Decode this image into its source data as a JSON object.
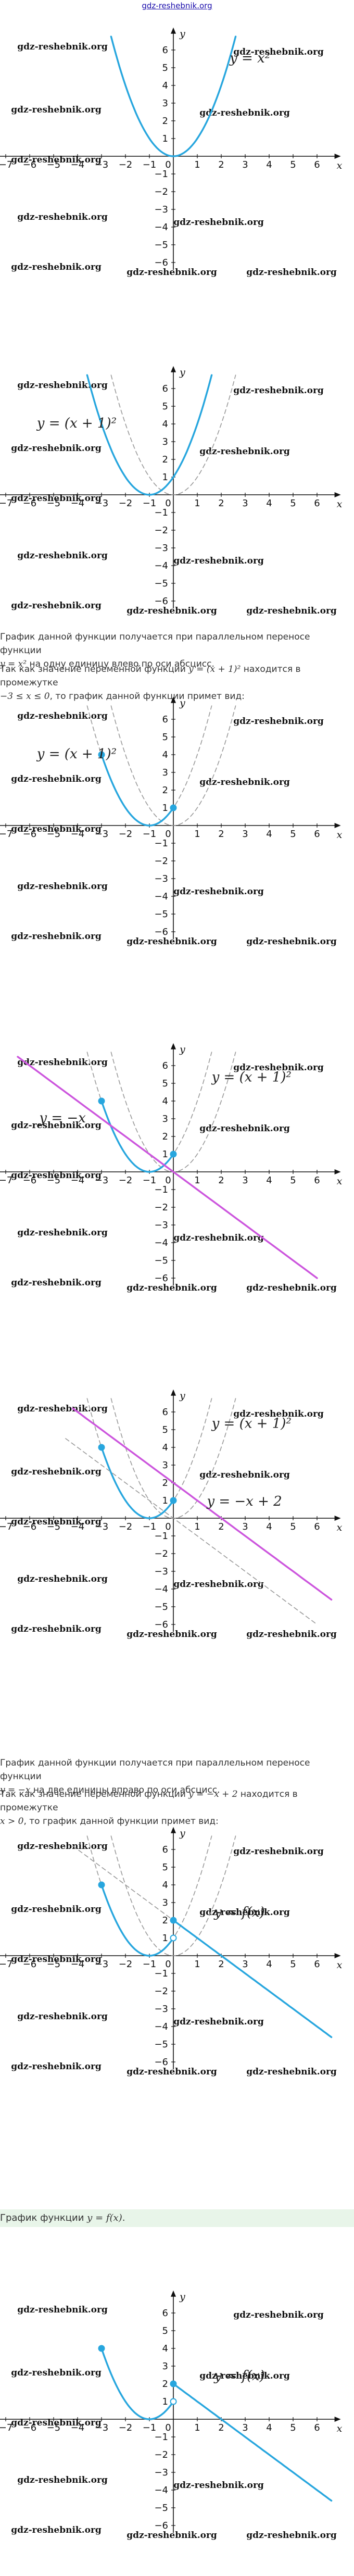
{
  "site": "gdz-reshebnik.org",
  "watermark": "gdz-reshebnik.org",
  "graphs": [
    {
      "chart_data": {
        "type": "line",
        "xlim": [
          -7,
          6.6
        ],
        "ylim": [
          -6.3,
          6.8
        ],
        "x_ticks": [
          -7,
          -6,
          -5,
          -4,
          -3,
          -2,
          -1,
          1,
          2,
          3,
          4,
          5,
          6
        ],
        "y_ticks": [
          6,
          5,
          4,
          3,
          2,
          1,
          -1,
          -2,
          -3,
          -4,
          -5,
          -6
        ],
        "xlabel": "x",
        "ylabel": "y",
        "series": [
          {
            "kind": "parabola",
            "h": 0,
            "x_from": -2.6,
            "x_to": 2.6,
            "style": "solid",
            "color": "#27a6de"
          }
        ],
        "labels": [
          {
            "text": "y = x²",
            "x": 2.35,
            "y": 5.3
          }
        ],
        "points": []
      }
    },
    {
      "chart_data": {
        "type": "line",
        "xlim": [
          -7,
          6.6
        ],
        "ylim": [
          -6.3,
          6.8
        ],
        "x_ticks": [
          -7,
          -6,
          -5,
          -4,
          -3,
          -2,
          -1,
          1,
          2,
          3,
          4,
          5,
          6
        ],
        "y_ticks": [
          6,
          5,
          4,
          3,
          2,
          1,
          -1,
          -2,
          -3,
          -4,
          -5,
          -6
        ],
        "xlabel": "x",
        "ylabel": "y",
        "series": [
          {
            "kind": "parabola",
            "h": 0,
            "x_from": -2.6,
            "x_to": 2.6,
            "style": "dashed",
            "color": "#999999"
          },
          {
            "kind": "parabola",
            "h": -1,
            "x_from": -3.6,
            "x_to": 1.6,
            "style": "solid",
            "color": "#27a6de"
          }
        ],
        "labels": [
          {
            "text": "y = (x + 1)²",
            "x": -5.7,
            "y": 3.8
          }
        ],
        "points": []
      }
    },
    {
      "chart_data": {
        "type": "line",
        "xlim": [
          -7,
          6.6
        ],
        "ylim": [
          -6.3,
          6.8
        ],
        "x_ticks": [
          -7,
          -6,
          -5,
          -4,
          -3,
          -2,
          -1,
          1,
          2,
          3,
          4,
          5,
          6
        ],
        "y_ticks": [
          6,
          5,
          4,
          3,
          2,
          1,
          -1,
          -2,
          -3,
          -4,
          -5,
          -6
        ],
        "xlabel": "x",
        "ylabel": "y",
        "series": [
          {
            "kind": "parabola",
            "h": 0,
            "x_from": -2.6,
            "x_to": 2.6,
            "style": "dashed",
            "color": "#999999"
          },
          {
            "kind": "parabola",
            "h": -1,
            "x_from": -3.6,
            "x_to": 1.6,
            "style": "dashed",
            "color": "#999999"
          },
          {
            "kind": "parabola",
            "h": -1,
            "x_from": -3,
            "x_to": 0,
            "style": "solid",
            "color": "#27a6de"
          }
        ],
        "labels": [
          {
            "text": "y = (x + 1)²",
            "x": -5.7,
            "y": 3.8
          }
        ],
        "points": [
          {
            "x": -3,
            "y": 4,
            "fill": "#27a6de"
          },
          {
            "x": 0,
            "y": 1,
            "fill": "#27a6de"
          }
        ]
      }
    },
    {
      "chart_data": {
        "type": "line",
        "xlim": [
          -7,
          6.6
        ],
        "ylim": [
          -6.3,
          6.8
        ],
        "x_ticks": [
          -7,
          -6,
          -5,
          -4,
          -3,
          -2,
          -1,
          1,
          2,
          3,
          4,
          5,
          6
        ],
        "y_ticks": [
          6,
          5,
          4,
          3,
          2,
          1,
          -1,
          -2,
          -3,
          -4,
          -5,
          -6
        ],
        "xlabel": "x",
        "ylabel": "y",
        "series": [
          {
            "kind": "parabola",
            "h": 0,
            "x_from": -2.6,
            "x_to": 2.6,
            "style": "dashed",
            "color": "#999999"
          },
          {
            "kind": "parabola",
            "h": -1,
            "x_from": -3.6,
            "x_to": 1.6,
            "style": "dashed",
            "color": "#999999"
          },
          {
            "kind": "parabola",
            "h": -1,
            "x_from": -3,
            "x_to": 0,
            "style": "solid",
            "color": "#27a6de"
          },
          {
            "kind": "line",
            "k": -1,
            "b": 0,
            "x_from": -6.5,
            "x_to": 6.0,
            "style": "solid",
            "color": "#cc55dd"
          }
        ],
        "labels": [
          {
            "text": "y = (x + 1)²",
            "x": 1.6,
            "y": 5.1
          },
          {
            "text": "y = −x",
            "x": -5.6,
            "y": 2.8
          }
        ],
        "points": [
          {
            "x": -3,
            "y": 4,
            "fill": "#27a6de"
          },
          {
            "x": 0,
            "y": 1,
            "fill": "#27a6de"
          }
        ]
      }
    },
    {
      "chart_data": {
        "type": "line",
        "xlim": [
          -7,
          6.6
        ],
        "ylim": [
          -6.3,
          6.8
        ],
        "x_ticks": [
          -7,
          -6,
          -5,
          -4,
          -3,
          -2,
          -1,
          1,
          2,
          3,
          4,
          5,
          6
        ],
        "y_ticks": [
          6,
          5,
          4,
          3,
          2,
          1,
          -1,
          -2,
          -3,
          -4,
          -5,
          -6
        ],
        "xlabel": "x",
        "ylabel": "y",
        "series": [
          {
            "kind": "parabola",
            "h": 0,
            "x_from": -2.6,
            "x_to": 2.6,
            "style": "dashed",
            "color": "#999999"
          },
          {
            "kind": "parabola",
            "h": -1,
            "x_from": -3.6,
            "x_to": 1.6,
            "style": "dashed",
            "color": "#999999"
          },
          {
            "kind": "parabola",
            "h": -1,
            "x_from": -3,
            "x_to": 0,
            "style": "solid",
            "color": "#27a6de"
          },
          {
            "kind": "line",
            "k": -1,
            "b": 0,
            "x_from": -4.5,
            "x_to": 6.0,
            "style": "dashed",
            "color": "#999999"
          },
          {
            "kind": "line",
            "k": -1,
            "b": 2,
            "x_from": -4.2,
            "x_to": 6.6,
            "style": "solid",
            "color": "#cc55dd"
          }
        ],
        "labels": [
          {
            "text": "y = (x + 1)²",
            "x": 1.6,
            "y": 5.1
          },
          {
            "text": "y = −x + 2",
            "x": 1.4,
            "y": 0.7
          }
        ],
        "points": [
          {
            "x": -3,
            "y": 4,
            "fill": "#27a6de"
          },
          {
            "x": 0,
            "y": 1,
            "fill": "#27a6de"
          }
        ]
      }
    },
    {
      "chart_data": {
        "type": "line",
        "xlim": [
          -7,
          6.6
        ],
        "ylim": [
          -6.3,
          6.8
        ],
        "x_ticks": [
          -7,
          -6,
          -5,
          -4,
          -3,
          -2,
          -1,
          1,
          2,
          3,
          4,
          5,
          6
        ],
        "y_ticks": [
          6,
          5,
          4,
          3,
          2,
          1,
          -1,
          -2,
          -3,
          -4,
          -5,
          -6
        ],
        "xlabel": "x",
        "ylabel": "y",
        "series": [
          {
            "kind": "parabola",
            "h": 0,
            "x_from": -2.6,
            "x_to": 2.6,
            "style": "dashed",
            "color": "#999999"
          },
          {
            "kind": "parabola",
            "h": -1,
            "x_from": -3.6,
            "x_to": 1.6,
            "style": "dashed",
            "color": "#999999"
          },
          {
            "kind": "parabola",
            "h": -1,
            "x_from": -3,
            "x_to": 0,
            "style": "solid",
            "color": "#27a6de"
          },
          {
            "kind": "line",
            "k": -1,
            "b": 2,
            "x_from": -4.2,
            "x_to": 0,
            "style": "dashed",
            "color": "#999999"
          },
          {
            "kind": "line",
            "k": -1,
            "b": 2,
            "x_from": 0,
            "x_to": 6.6,
            "style": "solid",
            "color": "#27a6de"
          }
        ],
        "labels": [
          {
            "text": "y = f(x)",
            "x": 1.7,
            "y": 2.2
          }
        ],
        "points": [
          {
            "x": -3,
            "y": 4,
            "fill": "#27a6de"
          },
          {
            "x": 0,
            "y": 1,
            "fill": "#ffffff"
          },
          {
            "x": 0,
            "y": 2,
            "fill": "#27a6de"
          }
        ]
      }
    },
    {
      "chart_data": {
        "type": "line",
        "xlim": [
          -7,
          6.6
        ],
        "ylim": [
          -6.3,
          6.8
        ],
        "x_ticks": [
          -7,
          -6,
          -5,
          -4,
          -3,
          -2,
          -1,
          1,
          2,
          3,
          4,
          5,
          6
        ],
        "y_ticks": [
          6,
          5,
          4,
          3,
          2,
          1,
          -1,
          -2,
          -3,
          -4,
          -5,
          -6
        ],
        "xlabel": "x",
        "ylabel": "y",
        "series": [
          {
            "kind": "parabola",
            "h": -1,
            "x_from": -3,
            "x_to": 0,
            "style": "solid",
            "color": "#27a6de"
          },
          {
            "kind": "line",
            "k": -1,
            "b": 2,
            "x_from": 0,
            "x_to": 6.6,
            "style": "solid",
            "color": "#27a6de"
          }
        ],
        "labels": [
          {
            "text": "y = f(x)",
            "x": 1.7,
            "y": 2.2
          }
        ],
        "points": [
          {
            "x": -3,
            "y": 4,
            "fill": "#27a6de"
          },
          {
            "x": 0,
            "y": 1,
            "fill": "#ffffff"
          },
          {
            "x": 0,
            "y": 2,
            "fill": "#27a6de"
          }
        ]
      }
    }
  ],
  "texts": {
    "p1_a": "График данной функции получается при параллельном переносе функции",
    "p1_b": "y = x²",
    "p1_c": " на одну единицу влево по оси абсцисс.",
    "p2_a": "Так как значение переменной функции ",
    "p2_b": "y = (x + 1)²",
    "p2_c": " находится в промежутке",
    "p2_d": "−3 ≤ x ≤ 0",
    "p2_e": ", то график данной функции примет вид:",
    "p3_a": "График данной функции получается при параллельном переносе функции",
    "p3_b": "y = −x",
    "p3_c": " на две единицы вправо по оси абсцисс.",
    "p4_a": "Так как значение переменной функции ",
    "p4_b": "y = −x + 2",
    "p4_c": " находится в промежутке",
    "p4_d": "x > 0",
    "p4_e": ", то график данной функции примет вид:",
    "caption_a": "График функции ",
    "caption_b": "y = f(x)",
    "caption_c": "."
  }
}
